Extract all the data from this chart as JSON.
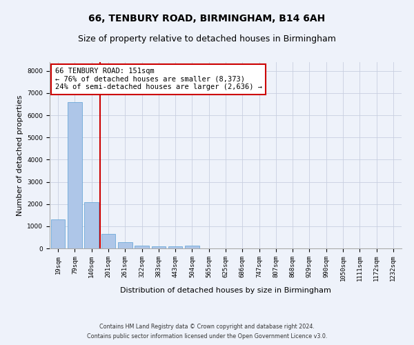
{
  "title1": "66, TENBURY ROAD, BIRMINGHAM, B14 6AH",
  "title2": "Size of property relative to detached houses in Birmingham",
  "xlabel": "Distribution of detached houses by size in Birmingham",
  "ylabel": "Number of detached properties",
  "footnote1": "Contains HM Land Registry data © Crown copyright and database right 2024.",
  "footnote2": "Contains public sector information licensed under the Open Government Licence v3.0.",
  "categories": [
    "19sqm",
    "79sqm",
    "140sqm",
    "201sqm",
    "261sqm",
    "322sqm",
    "383sqm",
    "443sqm",
    "504sqm",
    "565sqm",
    "625sqm",
    "686sqm",
    "747sqm",
    "807sqm",
    "868sqm",
    "929sqm",
    "990sqm",
    "1050sqm",
    "1111sqm",
    "1172sqm",
    "1232sqm"
  ],
  "values": [
    1310,
    6600,
    2070,
    650,
    280,
    130,
    90,
    80,
    130,
    0,
    0,
    0,
    0,
    0,
    0,
    0,
    0,
    0,
    0,
    0,
    0
  ],
  "bar_color": "#aec6e8",
  "bar_edge_color": "#5a9fd4",
  "vline_index": 2,
  "vline_color": "#cc0000",
  "annotation_title": "66 TENBURY ROAD: 151sqm",
  "annotation_line1": "← 76% of detached houses are smaller (8,373)",
  "annotation_line2": "24% of semi-detached houses are larger (2,636) →",
  "ylim": [
    0,
    8400
  ],
  "yticks": [
    0,
    1000,
    2000,
    3000,
    4000,
    5000,
    6000,
    7000,
    8000
  ],
  "bg_color": "#eef2fa",
  "plot_bg_color": "#eef2fa",
  "grid_color": "#c8cfe0",
  "title1_fontsize": 10,
  "title2_fontsize": 9,
  "annotation_fontsize": 7.5,
  "axis_label_fontsize": 8,
  "tick_fontsize": 6.5,
  "footnote_fontsize": 5.8
}
